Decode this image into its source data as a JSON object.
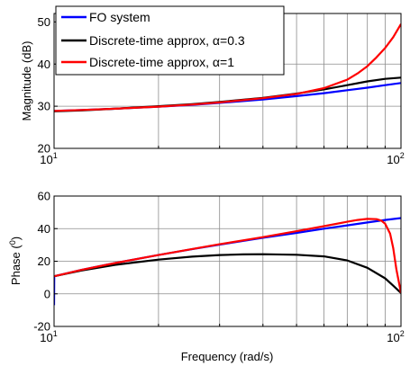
{
  "chart_data": [
    {
      "type": "line",
      "xscale": "log",
      "xlim": [
        10,
        100
      ],
      "ylim": [
        20,
        52
      ],
      "xticks": [
        10,
        100
      ],
      "xtick_labels": [
        {
          "base": "10",
          "exp": "1"
        },
        {
          "base": "10",
          "exp": "2"
        }
      ],
      "yticks": [
        20,
        30,
        40,
        50
      ],
      "ytick_labels": [
        "20",
        "30",
        "40",
        "50"
      ],
      "ylabel": "Magnitude (dB)",
      "xlabel": "",
      "grid": true,
      "legend": {
        "position": "top-left",
        "entries": [
          "FO system",
          "Discrete-time approx, α=0.3",
          "Discrete-time approx, α=1"
        ]
      },
      "series": [
        {
          "name": "FO system",
          "color": "#0000ff",
          "x": [
            10,
            12,
            15,
            20,
            25,
            30,
            40,
            50,
            60,
            70,
            80,
            90,
            100
          ],
          "y": [
            28.9,
            29.1,
            29.4,
            29.9,
            30.3,
            30.8,
            31.6,
            32.4,
            33.1,
            33.8,
            34.4,
            35.0,
            35.5
          ]
        },
        {
          "name": "Discrete-time approx, α=0.3",
          "color": "#000000",
          "x": [
            10,
            12,
            15,
            20,
            25,
            30,
            40,
            50,
            60,
            70,
            80,
            90,
            100
          ],
          "y": [
            28.8,
            29.0,
            29.4,
            30.0,
            30.5,
            31.0,
            32.0,
            33.0,
            34.0,
            35.0,
            35.9,
            36.5,
            36.8
          ]
        },
        {
          "name": "Discrete-time approx, α=1",
          "color": "#ff0000",
          "x": [
            10,
            12,
            15,
            20,
            25,
            30,
            40,
            50,
            60,
            70,
            75,
            80,
            85,
            90,
            95,
            100
          ],
          "y": [
            28.9,
            29.1,
            29.4,
            29.9,
            30.4,
            30.9,
            31.9,
            32.9,
            34.3,
            36.3,
            37.8,
            39.5,
            41.6,
            43.8,
            46.4,
            49.5
          ]
        }
      ]
    },
    {
      "type": "line",
      "xscale": "log",
      "xlim": [
        10,
        100
      ],
      "ylim": [
        -20,
        60
      ],
      "xticks": [
        10,
        100
      ],
      "xtick_labels": [
        {
          "base": "10",
          "exp": "1"
        },
        {
          "base": "10",
          "exp": "2"
        }
      ],
      "yticks": [
        -20,
        0,
        20,
        40,
        60
      ],
      "ytick_labels": [
        "-20",
        "0",
        "20",
        "40",
        "60"
      ],
      "ylabel": "Phase (",
      "ylabel_sup": "0",
      "ylabel_end": ")",
      "xlabel": "Frequency (rad/s)",
      "grid": true,
      "series": [
        {
          "name": "FO system",
          "color": "#0000ff",
          "x": [
            10,
            10.01,
            12,
            15,
            20,
            25,
            30,
            40,
            50,
            60,
            70,
            80,
            90,
            100
          ],
          "y": [
            -7,
            10.8,
            14.7,
            18.9,
            23.8,
            27.4,
            30.2,
            34.4,
            37.4,
            40.0,
            42.0,
            43.8,
            45.3,
            46.5
          ]
        },
        {
          "name": "Discrete-time approx, α=0.3",
          "color": "#000000",
          "x": [
            10,
            12,
            15,
            20,
            25,
            30,
            35,
            40,
            50,
            60,
            70,
            80,
            90,
            95,
            100
          ],
          "y": [
            10.8,
            14.3,
            17.8,
            21.0,
            22.8,
            23.8,
            24.2,
            24.3,
            24.0,
            23.0,
            20.5,
            16.0,
            9.5,
            5.0,
            0.5
          ]
        },
        {
          "name": "Discrete-time approx, α=1",
          "color": "#ff0000",
          "x": [
            10,
            12,
            15,
            20,
            25,
            30,
            40,
            50,
            60,
            70,
            75,
            80,
            85,
            88,
            90,
            93,
            95,
            97,
            100
          ],
          "y": [
            10.8,
            14.7,
            18.9,
            23.8,
            27.5,
            30.4,
            34.8,
            38.4,
            41.5,
            44.2,
            45.3,
            46.0,
            45.8,
            44.8,
            43.0,
            37.0,
            28.0,
            15.0,
            0.5
          ]
        }
      ]
    }
  ]
}
